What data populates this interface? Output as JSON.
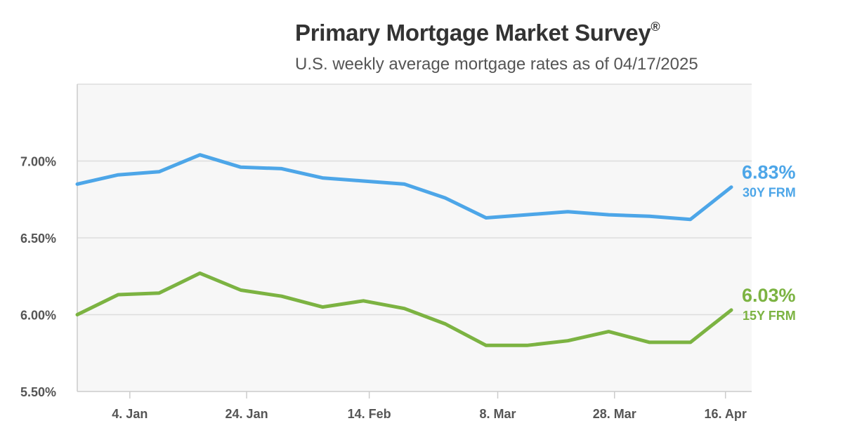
{
  "header": {
    "title": "Primary Mortgage Market Survey",
    "title_mark": "®",
    "subtitle": "U.S. weekly average mortgage rates as of 04/17/2025"
  },
  "chart_data": {
    "type": "line",
    "title": "Primary Mortgage Market Survey",
    "subtitle": "U.S. weekly average mortgage rates as of 04/17/2025",
    "xlabel": "",
    "ylabel": "",
    "ylim": [
      5.5,
      7.5
    ],
    "y_ticks": [
      5.5,
      6.0,
      6.5,
      7.0
    ],
    "y_tick_labels": [
      "5.50%",
      "6.00%",
      "6.50%",
      "7.00%"
    ],
    "x": [
      "2024-12-26",
      "2025-01-02",
      "2025-01-09",
      "2025-01-16",
      "2025-01-23",
      "2025-01-30",
      "2025-02-06",
      "2025-02-13",
      "2025-02-20",
      "2025-02-27",
      "2025-03-06",
      "2025-03-13",
      "2025-03-20",
      "2025-03-27",
      "2025-04-03",
      "2025-04-10",
      "2025-04-17"
    ],
    "x_tick_labels": [
      "4. Jan",
      "24. Jan",
      "14. Feb",
      "8. Mar",
      "28. Mar",
      "16. Apr"
    ],
    "x_tick_dates": [
      "2025-01-04",
      "2025-01-24",
      "2025-02-14",
      "2025-03-08",
      "2025-03-28",
      "2025-04-16"
    ],
    "grid": true,
    "series": [
      {
        "name": "30Y FRM",
        "label": "30Y FRM",
        "end_label": "6.83%",
        "color": "#4da6e8",
        "values": [
          6.85,
          6.91,
          6.93,
          7.04,
          6.96,
          6.95,
          6.89,
          6.87,
          6.85,
          6.76,
          6.63,
          6.65,
          6.67,
          6.65,
          6.64,
          6.62,
          6.83
        ]
      },
      {
        "name": "15Y FRM",
        "label": "15Y FRM",
        "end_label": "6.03%",
        "color": "#7cb342",
        "values": [
          6.0,
          6.13,
          6.14,
          6.27,
          6.16,
          6.12,
          6.05,
          6.09,
          6.04,
          5.94,
          5.8,
          5.8,
          5.83,
          5.89,
          5.82,
          5.82,
          6.03
        ]
      }
    ]
  }
}
